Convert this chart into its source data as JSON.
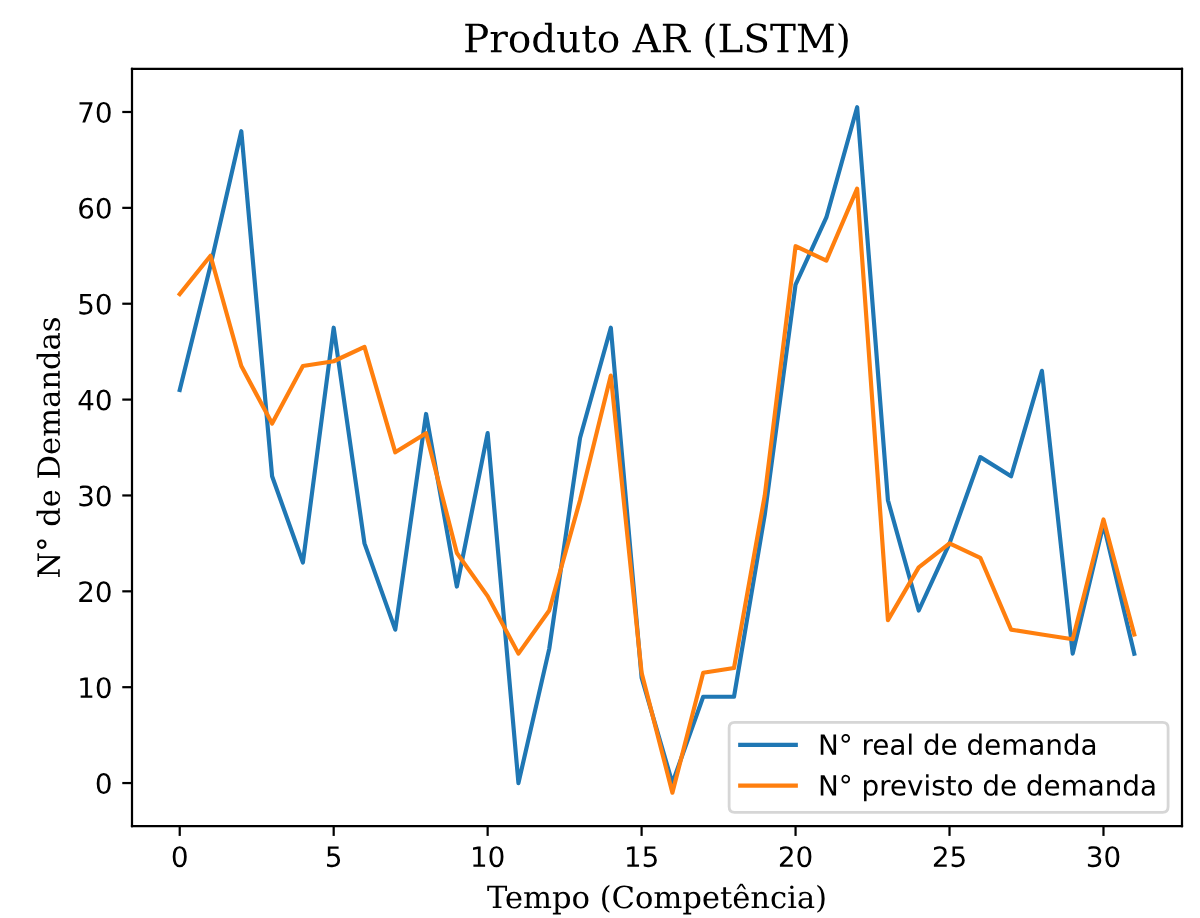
{
  "chart_data": {
    "type": "line",
    "title": "Produto AR (LSTM)",
    "xlabel": "Tempo (Competência)",
    "ylabel": "N° de Demandas",
    "x": [
      0,
      1,
      2,
      3,
      4,
      5,
      6,
      7,
      8,
      9,
      10,
      11,
      12,
      13,
      14,
      15,
      16,
      17,
      18,
      19,
      20,
      21,
      22,
      23,
      24,
      25,
      26,
      27,
      28,
      29,
      30,
      31
    ],
    "series": [
      {
        "name": "N° real de demanda",
        "color": "#1f77b4",
        "values": [
          41,
          54,
          68,
          32,
          23,
          47.5,
          25,
          16,
          38.5,
          20.5,
          36.5,
          0,
          14,
          36,
          47.5,
          11,
          0,
          9,
          9,
          28,
          52,
          59,
          70.5,
          29.5,
          18,
          25,
          34,
          32,
          43,
          13.5,
          27,
          13.5
        ]
      },
      {
        "name": "N° previsto de demanda",
        "color": "#ff7f0e",
        "values": [
          51,
          55,
          43.5,
          37.5,
          43.5,
          44,
          45.5,
          34.5,
          36.5,
          24,
          19.5,
          13.5,
          18,
          29.5,
          42.5,
          11.5,
          -1,
          11.5,
          12,
          30,
          56,
          54.5,
          62,
          17,
          22.5,
          25,
          23.5,
          16,
          15.5,
          15,
          27.5,
          15.5
        ]
      }
    ],
    "xlim": [
      -1.55,
      32.55
    ],
    "ylim": [
      -4.5,
      74.5
    ],
    "xticks": [
      0,
      5,
      10,
      15,
      20,
      25,
      30
    ],
    "yticks": [
      0,
      10,
      20,
      30,
      40,
      50,
      60,
      70
    ],
    "grid": false,
    "legend": "lower right"
  }
}
